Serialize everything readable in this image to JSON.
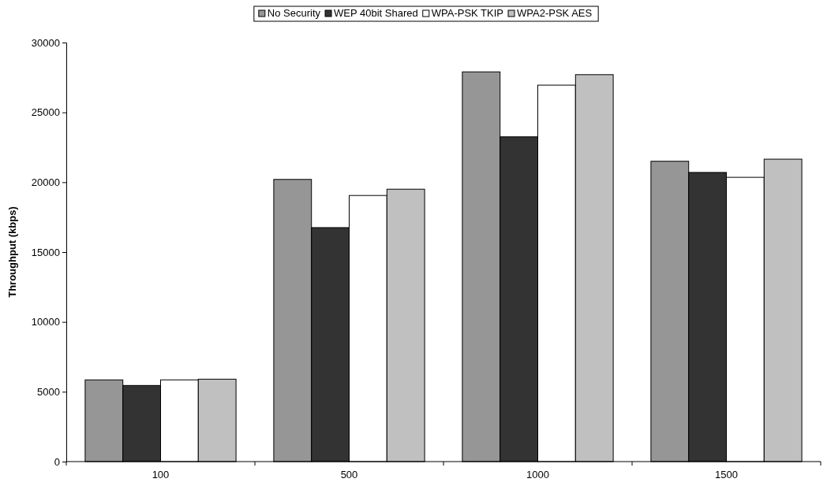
{
  "chart_data": {
    "type": "bar",
    "ylabel": "Throughput (kbps)",
    "categories": [
      "100",
      "500",
      "1000",
      "1500"
    ],
    "series": [
      {
        "name": "No Security",
        "color": "#969696",
        "values": [
          5850,
          20200,
          27900,
          21500
        ]
      },
      {
        "name": "WEP 40bit Shared",
        "color": "#333333",
        "values": [
          5450,
          16750,
          23250,
          20700
        ]
      },
      {
        "name": "WPA-PSK TKIP",
        "color": "#ffffff",
        "values": [
          5850,
          19050,
          26950,
          20350
        ]
      },
      {
        "name": "WPA2-PSK AES",
        "color": "#c0c0c0",
        "values": [
          5900,
          19500,
          27700,
          21650
        ]
      }
    ],
    "ylim": [
      0,
      30000
    ],
    "yticks": [
      0,
      5000,
      10000,
      15000,
      20000,
      25000,
      30000
    ],
    "grid": false,
    "legend": "top"
  }
}
